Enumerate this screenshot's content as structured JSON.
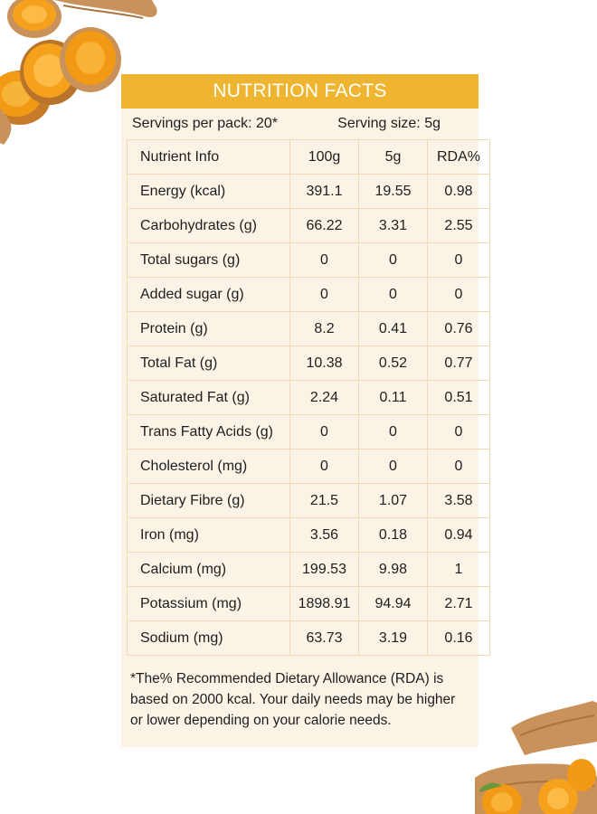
{
  "title": "NUTRITION FACTS",
  "servings": {
    "per_pack": "Servings per pack: 20*",
    "size": "Serving size: 5g"
  },
  "table": {
    "columns": [
      "Nutrient Info",
      "100g",
      "5g",
      "RDA%"
    ],
    "rows": [
      {
        "name": "Energy (kcal)",
        "per100": "391.1",
        "per5": "19.55",
        "rda": "0.98"
      },
      {
        "name": "Carbohydrates (g)",
        "per100": "66.22",
        "per5": "3.31",
        "rda": "2.55"
      },
      {
        "name": "Total sugars (g)",
        "per100": "0",
        "per5": "0",
        "rda": "0"
      },
      {
        "name": "Added sugar (g)",
        "per100": "0",
        "per5": "0",
        "rda": "0"
      },
      {
        "name": "Protein (g)",
        "per100": "8.2",
        "per5": "0.41",
        "rda": "0.76"
      },
      {
        "name": "Total Fat (g)",
        "per100": "10.38",
        "per5": "0.52",
        "rda": "0.77"
      },
      {
        "name": "Saturated Fat (g)",
        "per100": "2.24",
        "per5": "0.11",
        "rda": "0.51"
      },
      {
        "name": "Trans Fatty Acids (g)",
        "per100": "0",
        "per5": "0",
        "rda": "0"
      },
      {
        "name": "Cholesterol (mg)",
        "per100": "0",
        "per5": "0",
        "rda": "0"
      },
      {
        "name": "Dietary Fibre (g)",
        "per100": "21.5",
        "per5": "1.07",
        "rda": "3.58"
      },
      {
        "name": "Iron (mg)",
        "per100": "3.56",
        "per5": "0.18",
        "rda": "0.94"
      },
      {
        "name": "Calcium (mg)",
        "per100": "199.53",
        "per5": "9.98",
        "rda": "1"
      },
      {
        "name": "Potassium (mg)",
        "per100": "1898.91",
        "per5": "94.94",
        "rda": "2.71"
      },
      {
        "name": "Sodium (mg)",
        "per100": "63.73",
        "per5": "3.19",
        "rda": "0.16"
      }
    ]
  },
  "footnote": "*The% Recommended Dietary Allowance (RDA) is based on 2000 kcal. Your daily needs may be higher or lower depending on your calorie needs.",
  "colors": {
    "header": "#efb530",
    "panel": "#fbf3e5",
    "grid": "#f0d9b4",
    "turmeric_flesh": "#f29a16",
    "turmeric_skin": "#c9925a"
  },
  "images": {
    "top_left": "turmeric-slices-illustration",
    "bottom_right": "turmeric-root-illustration"
  }
}
